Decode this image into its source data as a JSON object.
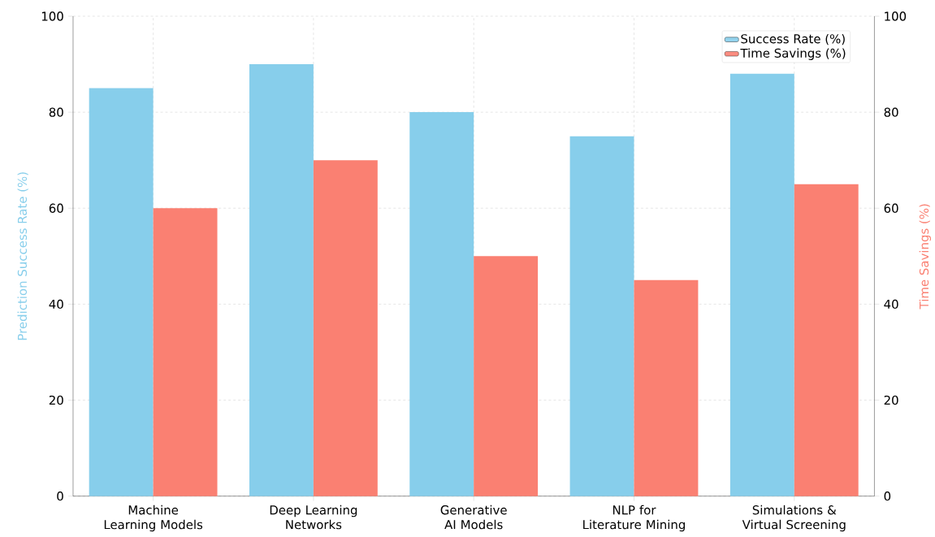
{
  "chart_data": {
    "type": "bar",
    "categories": [
      "Machine Learning Models",
      "Deep Learning Networks",
      "Generative AI Models",
      "NLP for Literature Mining",
      "Simulations & Virtual Screening"
    ],
    "series": [
      {
        "name": "Success Rate (%)",
        "color": "#87ceeb",
        "values": [
          85,
          90,
          80,
          75,
          88
        ]
      },
      {
        "name": "Time Savings (%)",
        "color": "#fa8072",
        "values": [
          60,
          70,
          50,
          45,
          65
        ],
        "axis": "y2"
      }
    ],
    "ylabel": "Prediction Success Rate (%)",
    "y2label": "Time Savings (%)",
    "ylim": [
      0,
      100
    ],
    "yticks": [
      0,
      20,
      40,
      60,
      80,
      100
    ],
    "y2lim": [
      0,
      100
    ],
    "y2ticks": [
      0,
      20,
      40,
      60,
      80,
      100
    ],
    "grid": true,
    "legend": "top right"
  }
}
